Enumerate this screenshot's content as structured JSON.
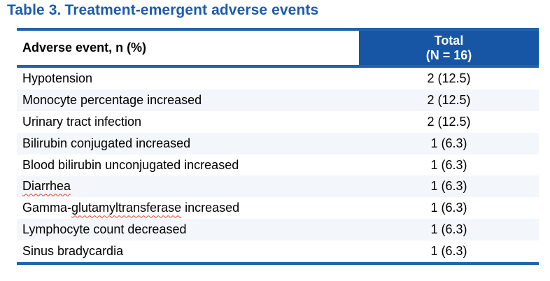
{
  "title": {
    "label": "Table 3.",
    "text": "Treatment-emergent adverse events"
  },
  "table": {
    "header": {
      "event_column": "Adverse event, n (%)",
      "total_column_line1": "Total",
      "total_column_line2": "(N = 16)"
    },
    "rows": [
      {
        "event_segments": [
          {
            "text": "Hypotension",
            "spellcheck_underline": false
          }
        ],
        "total": "2 (12.5)"
      },
      {
        "event_segments": [
          {
            "text": "Monocyte percentage increased",
            "spellcheck_underline": false
          }
        ],
        "total": "2 (12.5)"
      },
      {
        "event_segments": [
          {
            "text": "Urinary tract infection",
            "spellcheck_underline": false
          }
        ],
        "total": "2 (12.5)"
      },
      {
        "event_segments": [
          {
            "text": "Bilirubin conjugated increased",
            "spellcheck_underline": false
          }
        ],
        "total": "1 (6.3)"
      },
      {
        "event_segments": [
          {
            "text": "Blood bilirubin unconjugated increased",
            "spellcheck_underline": false
          }
        ],
        "total": "1 (6.3)"
      },
      {
        "event_segments": [
          {
            "text": "Diarrhea",
            "spellcheck_underline": true
          }
        ],
        "total": "1 (6.3)"
      },
      {
        "event_segments": [
          {
            "text": "Gamma-",
            "spellcheck_underline": false
          },
          {
            "text": "glutamyltransferase",
            "spellcheck_underline": true
          },
          {
            "text": " increased",
            "spellcheck_underline": false
          }
        ],
        "total": "1 (6.3)"
      },
      {
        "event_segments": [
          {
            "text": "Lymphocyte count decreased",
            "spellcheck_underline": false
          }
        ],
        "total": "1 (6.3)"
      },
      {
        "event_segments": [
          {
            "text": "Sinus bradycardia",
            "spellcheck_underline": false
          }
        ],
        "total": "1 (6.3)"
      }
    ]
  },
  "colors": {
    "title_blue": "#1C5BAC",
    "header_cell_blue": "#1656A4",
    "rule_blue": "#2263AC",
    "alt_row_tint": "#F3F6FB",
    "spellcheck_red": "#E0452F"
  }
}
